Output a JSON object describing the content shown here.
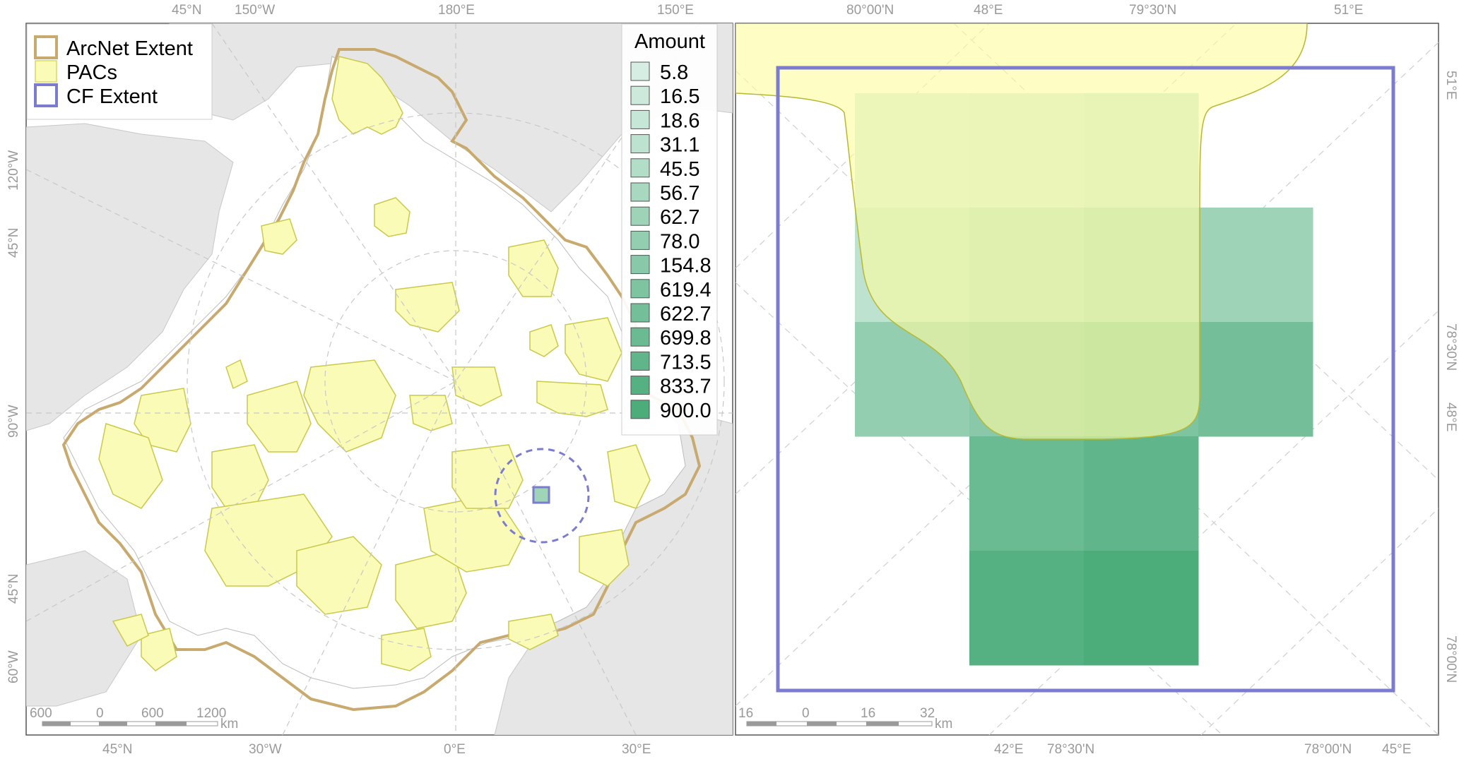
{
  "left_map": {
    "top_labels": [
      "45°N",
      "150°W",
      "180°E",
      "150°E"
    ],
    "bottom_labels": [
      "45°N",
      "30°W",
      "0°E",
      "30°E"
    ],
    "left_labels": [
      "120°W",
      "45°N",
      "90°W",
      "45°N",
      "60°W"
    ],
    "legend": {
      "items": [
        {
          "label": "ArcNet Extent",
          "color": "#c8a96e",
          "fill": "none"
        },
        {
          "label": "PACs",
          "color": "#d8d860",
          "fill": "#fbfbb8"
        },
        {
          "label": "CF Extent",
          "color": "#7b7bd0",
          "fill": "none"
        }
      ]
    },
    "amount_legend": {
      "title": "Amount",
      "values": [
        "5.8",
        "16.5",
        "18.6",
        "31.1",
        "45.5",
        "56.7",
        "62.7",
        "78.0",
        "154.8",
        "619.4",
        "622.7",
        "699.8",
        "713.5",
        "833.7",
        "900.0"
      ],
      "colors": [
        "#d6ede3",
        "#cde9dc",
        "#c6e6d7",
        "#bde2d0",
        "#b2ddc7",
        "#a8d8c0",
        "#9ed3b8",
        "#94ceb1",
        "#89c9a9",
        "#7ec4a1",
        "#74bf99",
        "#6abb92",
        "#60b68a",
        "#56b182",
        "#4cac7a"
      ]
    },
    "scale_bar": {
      "labels": [
        "600",
        "0",
        "600",
        "1200"
      ],
      "unit": "km"
    }
  },
  "right_map": {
    "top_labels": [
      "80°00'N",
      "48°E",
      "79°30'N",
      "51°E"
    ],
    "bottom_labels": [
      "42°E",
      "78°30'N",
      "78°00'N",
      "45°E"
    ],
    "right_labels": [
      "51°E",
      "78°30'N",
      "48°E",
      "78°00'N"
    ],
    "scale_bar": {
      "labels": [
        "16",
        "0",
        "16",
        "32"
      ],
      "unit": "km"
    },
    "cells": [
      {
        "row": 0,
        "col": 0,
        "amount": 5.8
      },
      {
        "row": 0,
        "col": 1,
        "amount": 16.5
      },
      {
        "row": 0,
        "col": 2,
        "amount": 18.6
      },
      {
        "row": 1,
        "col": 0,
        "amount": 31.1
      },
      {
        "row": 1,
        "col": 1,
        "amount": 45.5
      },
      {
        "row": 1,
        "col": 2,
        "amount": 56.7
      },
      {
        "row": 1,
        "col": 3,
        "amount": 62.7
      },
      {
        "row": 2,
        "col": 0,
        "amount": 78.0
      },
      {
        "row": 2,
        "col": 1,
        "amount": 154.8
      },
      {
        "row": 2,
        "col": 2,
        "amount": 619.4
      },
      {
        "row": 2,
        "col": 3,
        "amount": 622.7
      },
      {
        "row": 3,
        "col": 1,
        "amount": 699.8
      },
      {
        "row": 3,
        "col": 2,
        "amount": 713.5
      },
      {
        "row": 4,
        "col": 1,
        "amount": 833.7
      },
      {
        "row": 4,
        "col": 2,
        "amount": 900.0
      }
    ]
  }
}
